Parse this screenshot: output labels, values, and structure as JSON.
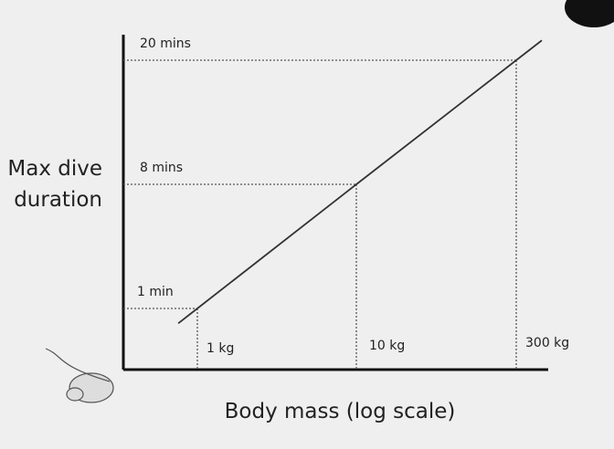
{
  "chart_data": {
    "type": "line",
    "xlabel": "Body mass (log scale)",
    "ylabel": [
      "Max dive",
      "duration"
    ],
    "x": [
      1,
      10,
      300
    ],
    "values": [
      1,
      8,
      20
    ],
    "color": "#333333",
    "xlog": true,
    "xticks": [
      {
        "value": 1,
        "label": "1 kg"
      },
      {
        "value": 10,
        "label": "10 kg"
      },
      {
        "value": 300,
        "label": "300 kg"
      }
    ],
    "yticks": [
      {
        "value": 1,
        "label": "1 min"
      },
      {
        "value": 8,
        "label": "8 mins"
      },
      {
        "value": 20,
        "label": "20 mins"
      }
    ]
  }
}
